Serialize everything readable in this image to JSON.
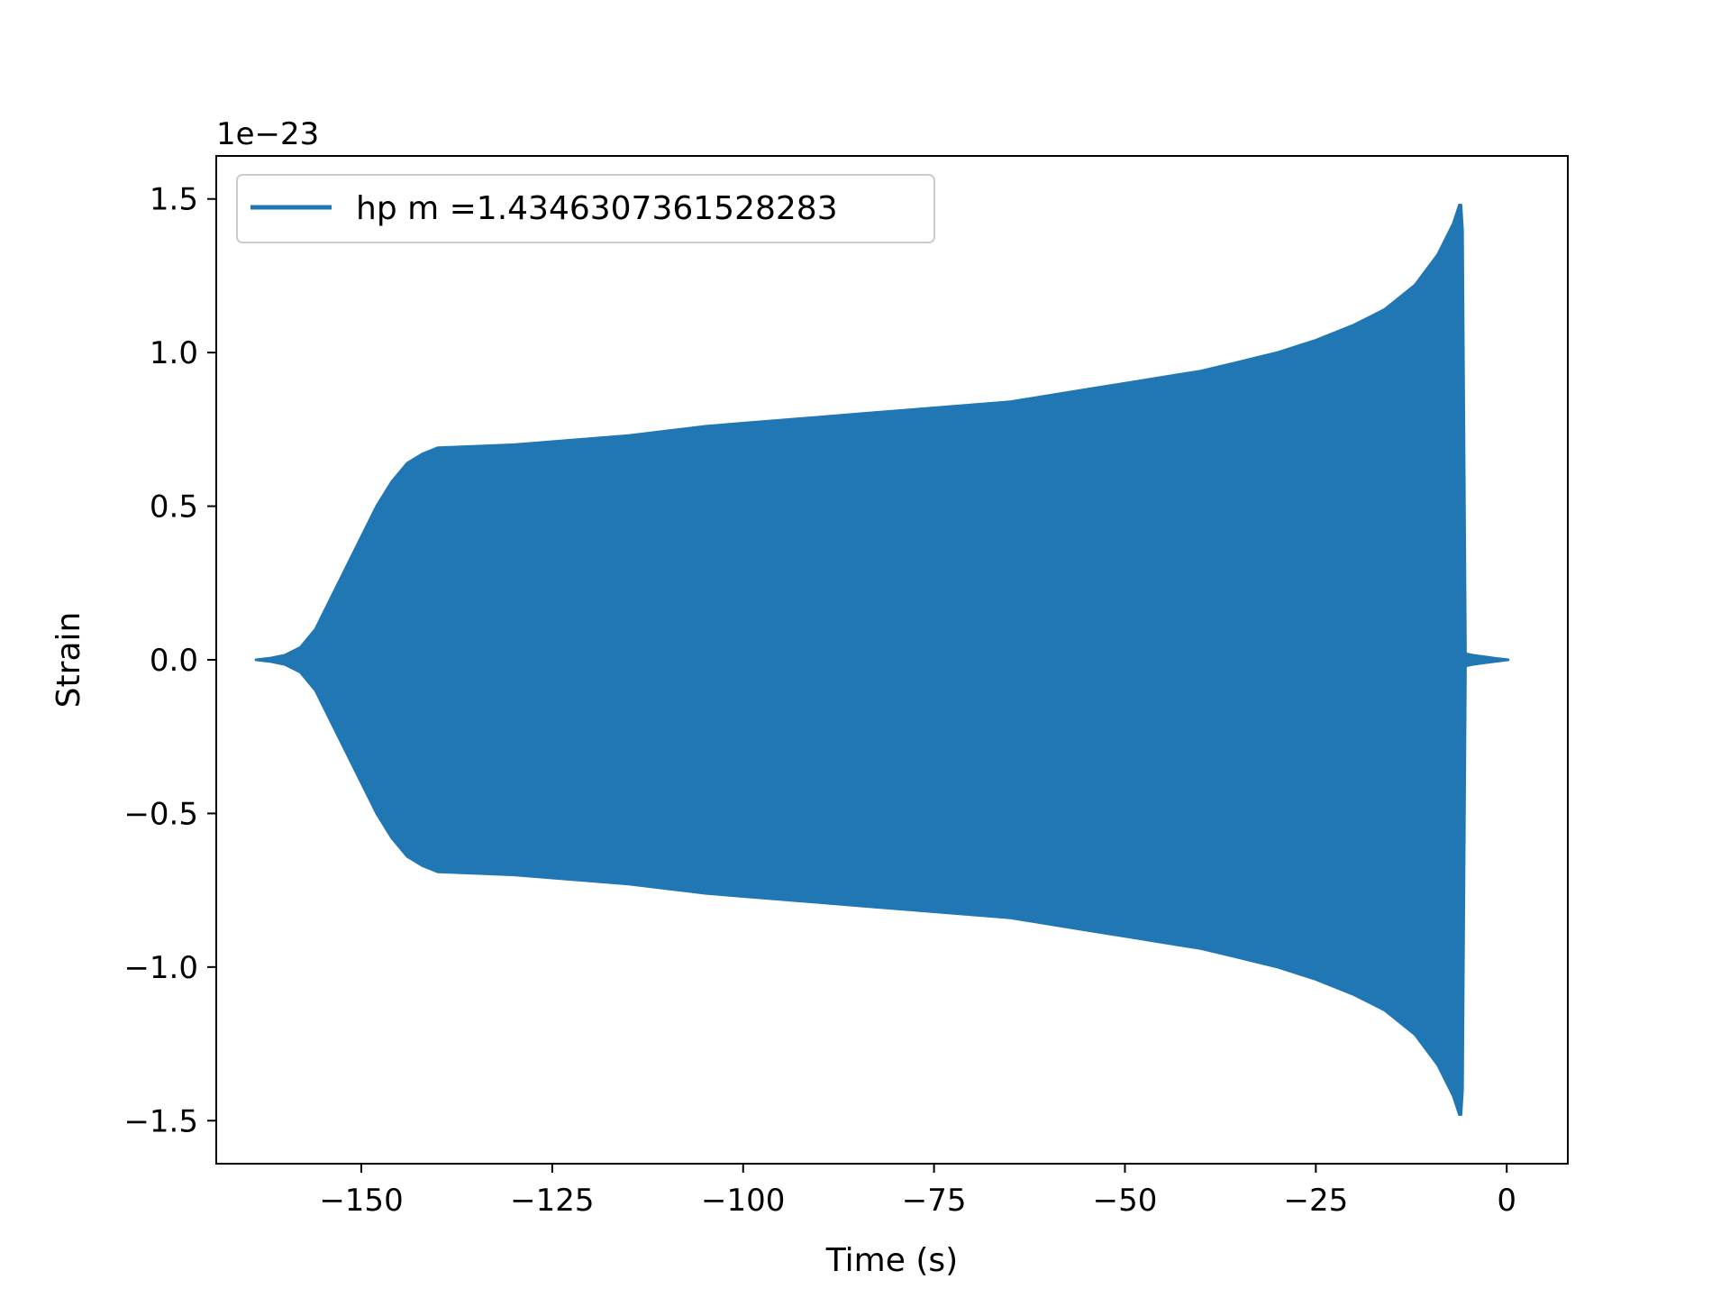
{
  "colors": {
    "series": "#2077b4",
    "axes": "#000000",
    "legend_border": "#cccccc"
  },
  "chart_data": {
    "type": "line",
    "title": "",
    "xlabel": "Time (s)",
    "ylabel": "Strain",
    "y_offset_label": "1e−23",
    "xlim": [
      -169,
      8
    ],
    "ylim": [
      -1.64,
      1.64
    ],
    "grid": false,
    "legend_position": "top-left",
    "x_ticks": [
      -150,
      -125,
      -100,
      -75,
      -50,
      -25,
      0
    ],
    "x_tick_labels": [
      "−150",
      "−125",
      "−100",
      "−75",
      "−50",
      "−25",
      "0"
    ],
    "y_ticks": [
      1.5,
      1.0,
      0.5,
      0.0,
      -0.5,
      -1.0,
      -1.5
    ],
    "y_tick_labels": [
      "1.5",
      "1.0",
      "0.5",
      "0.0",
      "−0.5",
      "−1.0",
      "−1.5"
    ],
    "series": [
      {
        "name": "hp m =1.4346307361528283",
        "envelope": {
          "t": [
            -163.8,
            -162,
            -160,
            -158,
            -156,
            -154,
            -152,
            -150,
            -148,
            -146,
            -144,
            -142,
            -140,
            -135,
            -130,
            -125,
            -120,
            -115,
            -110,
            -105,
            -100,
            -95,
            -90,
            -85,
            -80,
            -75,
            -70,
            -65,
            -60,
            -55,
            -50,
            -45,
            -40,
            -35,
            -30,
            -25,
            -20,
            -16,
            -12,
            -9,
            -7,
            -6.2,
            -6.0,
            -5.8,
            -5.4,
            -4.5,
            -3,
            -1.5,
            0.2
          ],
          "upper": [
            0.0,
            0.005,
            0.015,
            0.04,
            0.1,
            0.2,
            0.3,
            0.4,
            0.5,
            0.58,
            0.64,
            0.67,
            0.69,
            0.695,
            0.7,
            0.71,
            0.72,
            0.73,
            0.745,
            0.76,
            0.77,
            0.78,
            0.79,
            0.8,
            0.81,
            0.82,
            0.83,
            0.84,
            0.86,
            0.88,
            0.9,
            0.92,
            0.94,
            0.97,
            1.0,
            1.04,
            1.09,
            1.14,
            1.22,
            1.32,
            1.42,
            1.48,
            1.48,
            1.4,
            0.02,
            0.015,
            0.01,
            0.005,
            0.0
          ],
          "lower": [
            0.0,
            -0.005,
            -0.015,
            -0.04,
            -0.1,
            -0.2,
            -0.3,
            -0.4,
            -0.5,
            -0.58,
            -0.64,
            -0.67,
            -0.69,
            -0.695,
            -0.7,
            -0.71,
            -0.72,
            -0.73,
            -0.745,
            -0.76,
            -0.77,
            -0.78,
            -0.79,
            -0.8,
            -0.81,
            -0.82,
            -0.83,
            -0.84,
            -0.86,
            -0.88,
            -0.9,
            -0.92,
            -0.94,
            -0.97,
            -1.0,
            -1.04,
            -1.09,
            -1.14,
            -1.22,
            -1.32,
            -1.42,
            -1.48,
            -1.48,
            -1.4,
            -0.02,
            -0.015,
            -0.01,
            -0.005,
            0.0
          ]
        }
      }
    ]
  }
}
